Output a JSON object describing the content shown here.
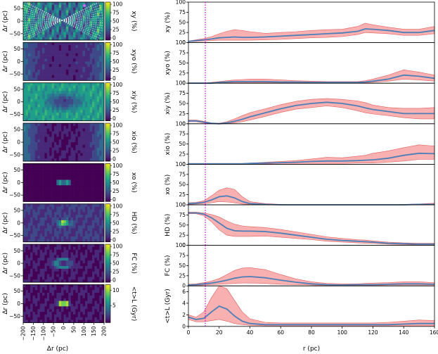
{
  "colors": {
    "line": "#4c7fb8",
    "band": "#f8b0b0",
    "band_edge": "#e06060",
    "marker": "#cc00cc",
    "viridis": [
      "#440154",
      "#482878",
      "#3e4989",
      "#31688e",
      "#26828e",
      "#1f9e89",
      "#35b779",
      "#6ece58",
      "#b5de2b",
      "#fde725"
    ]
  },
  "maps": {
    "xlabel": "Δr (pc)",
    "ylabel": "Δr (pc)",
    "xticks": [
      "−200",
      "−150",
      "−100",
      "−50",
      "0",
      "50",
      "100",
      "150",
      "200"
    ],
    "yticks": [
      "50",
      "0",
      "−50"
    ],
    "panels": [
      {
        "label": "xy (%)",
        "cbar_ticks": [
          "100",
          "75",
          "50",
          "25",
          "0"
        ]
      },
      {
        "label": "xyo (%)",
        "cbar_ticks": [
          "100",
          "75",
          "50",
          "25",
          "0"
        ]
      },
      {
        "label": "xiy (%)",
        "cbar_ticks": [
          "100",
          "75",
          "50",
          "25",
          "0"
        ]
      },
      {
        "label": "xio (%)",
        "cbar_ticks": [
          "100",
          "75",
          "50",
          "25",
          "0"
        ]
      },
      {
        "label": "xo (%)",
        "cbar_ticks": [
          "100",
          "75",
          "50",
          "25",
          "0"
        ]
      },
      {
        "label": "HD (%)",
        "cbar_ticks": [
          "100",
          "75",
          "50",
          "25",
          "0"
        ]
      },
      {
        "label": "FC (%)",
        "cbar_ticks": [
          "100",
          "75",
          "50",
          "25",
          "0"
        ]
      },
      {
        "label": "<t>L (Gyr)",
        "cbar_ticks": [
          "10",
          "5"
        ]
      }
    ]
  },
  "chart_data": {
    "type": "line",
    "xlabel": "r (pc)",
    "xlim": [
      0,
      160
    ],
    "xticks": [
      "0",
      "20",
      "40",
      "60",
      "80",
      "100",
      "120",
      "140",
      "160"
    ],
    "marker_x": 11,
    "x": [
      0,
      5,
      10,
      15,
      20,
      25,
      30,
      35,
      40,
      50,
      60,
      70,
      80,
      90,
      100,
      110,
      115,
      120,
      130,
      140,
      150,
      160
    ],
    "series": [
      {
        "label": "xy (%)",
        "ylim": [
          0,
          100
        ],
        "yticks": [
          "100",
          "75",
          "50",
          "25",
          "0"
        ],
        "mean": [
          3,
          5,
          7,
          9,
          12,
          13,
          14,
          13,
          13,
          14,
          16,
          18,
          20,
          22,
          24,
          28,
          34,
          33,
          30,
          25,
          25,
          30
        ],
        "upper": [
          4,
          7,
          10,
          15,
          22,
          28,
          32,
          30,
          27,
          23,
          25,
          27,
          30,
          32,
          33,
          40,
          48,
          44,
          38,
          33,
          33,
          40
        ],
        "lower": [
          2,
          3,
          4,
          5,
          6,
          6,
          6,
          6,
          6,
          7,
          8,
          10,
          12,
          13,
          15,
          20,
          25,
          24,
          22,
          18,
          18,
          22
        ]
      },
      {
        "label": "xyo (%)",
        "ylim": [
          0,
          100
        ],
        "yticks": [
          "100",
          "75",
          "50",
          "25",
          "0"
        ],
        "mean": [
          0,
          0,
          0,
          0,
          2,
          3,
          4,
          4,
          4,
          4,
          3,
          3,
          2,
          2,
          2,
          2,
          3,
          5,
          10,
          20,
          17,
          12
        ],
        "upper": [
          0,
          0,
          0,
          2,
          4,
          6,
          8,
          9,
          10,
          10,
          8,
          6,
          5,
          4,
          4,
          4,
          6,
          10,
          20,
          33,
          27,
          20
        ],
        "lower": [
          0,
          0,
          0,
          0,
          1,
          1,
          1,
          1,
          1,
          1,
          1,
          1,
          1,
          0,
          0,
          0,
          1,
          2,
          5,
          10,
          8,
          5
        ]
      },
      {
        "label": "xiy (%)",
        "ylim": [
          0,
          100
        ],
        "yticks": [
          "100",
          "75",
          "50",
          "25",
          "0"
        ],
        "mean": [
          7,
          7,
          4,
          1,
          0,
          2,
          6,
          11,
          17,
          27,
          37,
          45,
          50,
          53,
          50,
          44,
          39,
          35,
          30,
          25,
          25,
          25
        ],
        "upper": [
          9,
          9,
          6,
          2,
          1,
          5,
          12,
          20,
          27,
          37,
          47,
          55,
          60,
          62,
          60,
          56,
          52,
          46,
          40,
          38,
          38,
          40
        ],
        "lower": [
          5,
          5,
          2,
          0,
          0,
          0,
          2,
          5,
          9,
          18,
          28,
          36,
          40,
          44,
          40,
          32,
          27,
          24,
          20,
          15,
          12,
          12
        ]
      },
      {
        "label": "xio (%)",
        "ylim": [
          0,
          100
        ],
        "yticks": [
          "100",
          "75",
          "50",
          "25",
          "0"
        ],
        "mean": [
          1,
          1,
          1,
          1,
          1,
          1,
          1,
          1,
          2,
          3,
          4,
          5,
          7,
          8,
          8,
          9,
          10,
          11,
          15,
          22,
          27,
          26
        ],
        "upper": [
          2,
          2,
          2,
          2,
          2,
          2,
          2,
          2,
          3,
          5,
          7,
          9,
          13,
          17,
          16,
          20,
          22,
          27,
          33,
          41,
          48,
          45
        ],
        "lower": [
          0,
          0,
          0,
          0,
          0,
          0,
          0,
          0,
          1,
          1,
          2,
          2,
          2,
          2,
          2,
          3,
          3,
          3,
          5,
          8,
          12,
          12
        ]
      },
      {
        "label": "xo (%)",
        "ylim": [
          0,
          100
        ],
        "yticks": [
          "100",
          "75",
          "50",
          "25",
          "0"
        ],
        "mean": [
          3,
          4,
          6,
          12,
          20,
          22,
          17,
          8,
          3,
          1,
          0,
          0,
          0,
          0,
          0,
          0,
          0,
          0,
          0,
          0,
          1,
          1
        ],
        "upper": [
          5,
          6,
          10,
          22,
          36,
          42,
          38,
          20,
          8,
          3,
          1,
          0,
          0,
          0,
          0,
          0,
          0,
          0,
          0,
          1,
          2,
          4
        ],
        "lower": [
          1,
          2,
          3,
          5,
          8,
          7,
          5,
          2,
          1,
          0,
          0,
          0,
          0,
          0,
          0,
          0,
          0,
          0,
          0,
          0,
          0,
          0
        ]
      },
      {
        "label": "HD (%)",
        "ylim": [
          0,
          100
        ],
        "yticks": [
          "100",
          "75",
          "50",
          "25",
          "0"
        ],
        "mean": [
          80,
          80,
          77,
          68,
          55,
          42,
          36,
          35,
          35,
          34,
          30,
          25,
          20,
          15,
          12,
          10,
          9,
          8,
          5,
          4,
          3,
          3
        ],
        "upper": [
          82,
          82,
          80,
          76,
          70,
          60,
          52,
          48,
          46,
          44,
          39,
          33,
          27,
          21,
          17,
          14,
          13,
          11,
          8,
          6,
          5,
          5
        ],
        "lower": [
          78,
          78,
          73,
          58,
          38,
          25,
          22,
          22,
          22,
          23,
          20,
          17,
          14,
          10,
          8,
          6,
          5,
          5,
          3,
          2,
          1,
          1
        ]
      },
      {
        "label": "FC (%)",
        "ylim": [
          0,
          100
        ],
        "yticks": [
          "100",
          "75",
          "50",
          "25",
          "0"
        ],
        "mean": [
          2,
          3,
          5,
          7,
          10,
          14,
          19,
          22,
          23,
          20,
          14,
          9,
          5,
          3,
          2,
          3,
          3,
          3,
          4,
          5,
          5,
          4
        ],
        "upper": [
          4,
          5,
          8,
          12,
          18,
          28,
          38,
          44,
          45,
          40,
          28,
          17,
          10,
          6,
          5,
          5,
          6,
          7,
          8,
          10,
          10,
          8
        ],
        "lower": [
          1,
          1,
          2,
          3,
          4,
          5,
          6,
          7,
          7,
          6,
          4,
          3,
          2,
          1,
          1,
          1,
          1,
          1,
          2,
          2,
          2,
          2
        ]
      },
      {
        "label": "<t>L (Gyr)",
        "ylim": [
          0,
          7
        ],
        "yticks": [
          "6",
          "4",
          "2",
          "0"
        ],
        "mean": [
          1.6,
          1.2,
          1.4,
          2.5,
          3.5,
          3.0,
          1.8,
          0.9,
          0.5,
          0.3,
          0.3,
          0.3,
          0.3,
          0.3,
          0.3,
          0.3,
          0.3,
          0.3,
          0.3,
          0.4,
          0.5,
          0.5
        ],
        "upper": [
          2.0,
          1.6,
          2.5,
          5.0,
          7.0,
          6.5,
          4.5,
          2.5,
          1.3,
          0.7,
          0.6,
          0.6,
          0.6,
          0.6,
          0.6,
          0.6,
          0.6,
          0.6,
          0.7,
          0.9,
          1.1,
          1.0
        ],
        "lower": [
          1.2,
          0.8,
          0.8,
          1.0,
          1.2,
          0.9,
          0.5,
          0.3,
          0.2,
          0.1,
          0.1,
          0.1,
          0.1,
          0.1,
          0.1,
          0.1,
          0.1,
          0.1,
          0.1,
          0.1,
          0.1,
          0.1
        ]
      }
    ]
  }
}
